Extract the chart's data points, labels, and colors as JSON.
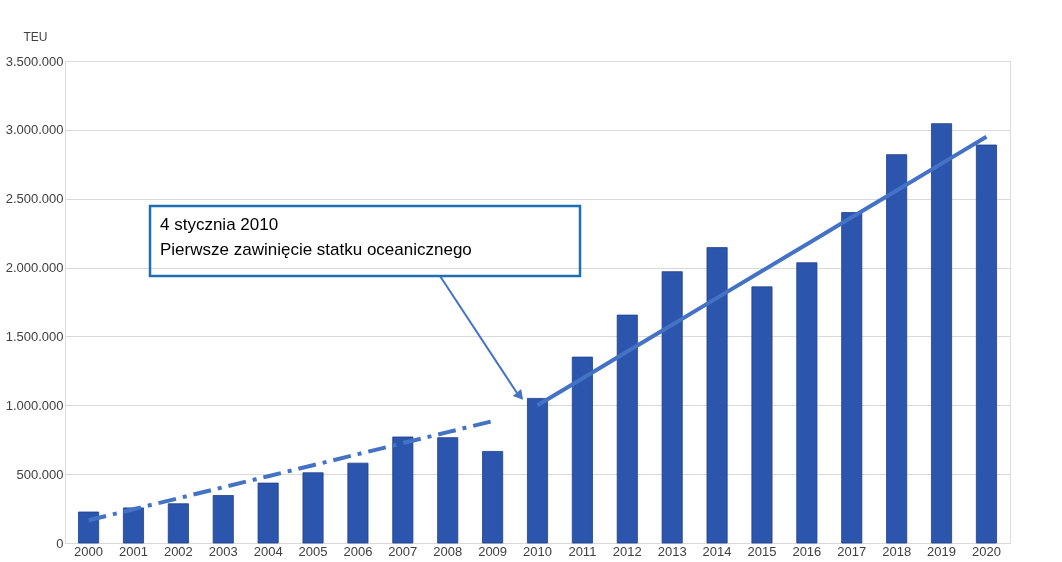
{
  "chart_data": {
    "type": "bar",
    "ylabel": "TEU",
    "categories": [
      "2000",
      "2001",
      "2002",
      "2003",
      "2004",
      "2005",
      "2006",
      "2007",
      "2008",
      "2009",
      "2010",
      "2011",
      "2012",
      "2013",
      "2014",
      "2015",
      "2016",
      "2017",
      "2018",
      "2019",
      "2020"
    ],
    "series": [
      {
        "color": "#2c56ad",
        "values": [
          225000,
          255000,
          285000,
          345000,
          435000,
          510000,
          580000,
          770000,
          765000,
          665000,
          1050000,
          1350000,
          1655000,
          1970000,
          2145000,
          1860000,
          2035000,
          2400000,
          2820000,
          3045000,
          2890000
        ]
      },
      {
        "type": "line",
        "color": "#4472c4",
        "line_style": "dashed",
        "values": [
          165000,
          245000,
          325000,
          405000,
          485000,
          565000,
          645000,
          725000,
          805000,
          885000,
          null,
          null,
          null,
          null,
          null,
          null,
          null,
          null,
          null,
          null,
          null
        ]
      },
      {
        "type": "line",
        "color": "#4472c4",
        "line_style": "solid",
        "values": [
          null,
          null,
          null,
          null,
          null,
          null,
          null,
          null,
          null,
          null,
          1000000,
          1195000,
          1390000,
          1585000,
          1780000,
          1975000,
          2170000,
          2365000,
          2560000,
          2755000,
          2950000
        ]
      }
    ],
    "ylim": [
      0,
      3500000
    ],
    "yticks": [
      {
        "value": 0,
        "label": "0"
      },
      {
        "value": 500000,
        "label": "500.000"
      },
      {
        "value": 1000000,
        "label": "1.000.000"
      },
      {
        "value": 1500000,
        "label": "1.500.000"
      },
      {
        "value": 2000000,
        "label": "2.000.000"
      },
      {
        "value": 2500000,
        "label": "2.500.000"
      },
      {
        "value": 3000000,
        "label": "3.000.000"
      },
      {
        "value": 3500000,
        "label": "3.500.000"
      }
    ],
    "grid": "y",
    "annotations": [
      "4 stycznia 2010\nPierwsze zawinięcie statku oceanicznego"
    ]
  }
}
